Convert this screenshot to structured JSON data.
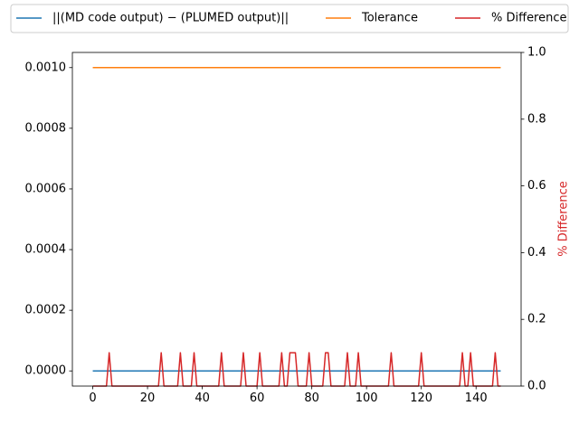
{
  "chart_data": {
    "type": "line",
    "title": "",
    "xlabel": "",
    "ylabel": "",
    "ylabel_right": "% Difference",
    "xlim": [
      -7.45,
      156.45
    ],
    "ylim": [
      -5e-05,
      0.00105
    ],
    "ylim_right": [
      0,
      1
    ],
    "xticks": [
      0,
      20,
      40,
      60,
      80,
      100,
      120,
      140
    ],
    "xtick_labels": [
      "0",
      "20",
      "40",
      "60",
      "80",
      "100",
      "120",
      "140"
    ],
    "yticks": [
      0,
      0.0002,
      0.0004,
      0.0006,
      0.0008,
      0.001
    ],
    "ytick_labels": [
      "0.0000",
      "0.0002",
      "0.0004",
      "0.0006",
      "0.0008",
      "0.0010"
    ],
    "yticks_right": [
      0,
      0.2,
      0.4,
      0.6,
      0.8,
      1.0
    ],
    "ytick_labels_right": [
      "0.0",
      "0.2",
      "0.4",
      "0.6",
      "0.8",
      "1.0"
    ],
    "grid": false,
    "legend_position": "top",
    "x_range": [
      0,
      149
    ],
    "series": [
      {
        "name": "||(MD code output) − (PLUMED output)||",
        "axis": "left",
        "color": "#1f77b4",
        "constant_value": 0
      },
      {
        "name": "Tolerance",
        "axis": "left",
        "color": "#ff7f0e",
        "constant_value": 0.001
      },
      {
        "name": "% Difference",
        "axis": "right",
        "color": "#d62728",
        "baseline": 0,
        "spike_value": 0.1,
        "spike_x": [
          6,
          25,
          32,
          37,
          47,
          55,
          61,
          69,
          72,
          73,
          74,
          79,
          85,
          86,
          93,
          97,
          109,
          120,
          135,
          138,
          147
        ]
      }
    ]
  }
}
